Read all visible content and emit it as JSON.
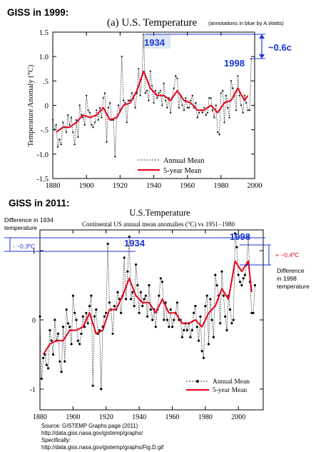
{
  "panel_labels": {
    "top": "GISS in 1999:",
    "bottom": "GISS in 2011:"
  },
  "colors": {
    "annual": "#333333",
    "mean5": "#e3001b",
    "annotation": "#1a35d8",
    "top_highlight_1934": "#dde6f5"
  },
  "chart_data": [
    {
      "type": "line",
      "title": "(a)  U.S. Temperature",
      "subtitle": "(annotations in blue by A.Watts)",
      "xlabel": "",
      "ylabel": "Temperature Anomaly (°C)",
      "xlim": [
        1880,
        2000
      ],
      "ylim": [
        -1.5,
        1.5
      ],
      "x_ticks": [
        1880,
        1900,
        1920,
        1940,
        1960,
        1980,
        2000
      ],
      "y_ticks": [
        -1.5,
        -1.0,
        -0.5,
        0.0,
        0.5,
        1.0,
        1.5
      ],
      "y_tick_labels": [
        "-1.5",
        "-1.0",
        "-.5",
        "0",
        ".5",
        "1.0",
        "1.5"
      ],
      "grid": false,
      "legend": "bottom-center",
      "series": [
        {
          "name": "Annual Mean",
          "x": [
            1880,
            1881,
            1882,
            1883,
            1884,
            1885,
            1886,
            1887,
            1888,
            1889,
            1890,
            1891,
            1892,
            1893,
            1894,
            1895,
            1896,
            1897,
            1898,
            1899,
            1900,
            1901,
            1902,
            1903,
            1904,
            1905,
            1906,
            1907,
            1908,
            1909,
            1910,
            1911,
            1912,
            1913,
            1914,
            1915,
            1916,
            1917,
            1918,
            1919,
            1920,
            1921,
            1922,
            1923,
            1924,
            1925,
            1926,
            1927,
            1928,
            1929,
            1930,
            1931,
            1932,
            1933,
            1934,
            1935,
            1936,
            1937,
            1938,
            1939,
            1940,
            1941,
            1942,
            1943,
            1944,
            1945,
            1946,
            1947,
            1948,
            1949,
            1950,
            1951,
            1952,
            1953,
            1954,
            1955,
            1956,
            1957,
            1958,
            1959,
            1960,
            1961,
            1962,
            1963,
            1964,
            1965,
            1966,
            1967,
            1968,
            1969,
            1970,
            1971,
            1972,
            1973,
            1974,
            1975,
            1976,
            1977,
            1978,
            1979,
            1980,
            1981,
            1982,
            1983,
            1984,
            1985,
            1986,
            1987,
            1988,
            1989,
            1990,
            1991,
            1992,
            1993,
            1994,
            1995,
            1996,
            1997,
            1998
          ],
          "values": [
            -0.3,
            -0.5,
            -0.4,
            -0.85,
            -0.7,
            -0.8,
            -0.35,
            -0.45,
            -0.55,
            -0.2,
            -0.4,
            -0.25,
            -0.55,
            -0.8,
            -0.3,
            -0.65,
            0.0,
            -0.2,
            -0.25,
            -0.4,
            0.2,
            -0.1,
            -0.15,
            -0.4,
            -0.45,
            -0.35,
            -0.1,
            -0.3,
            -0.05,
            -0.25,
            0.15,
            0.25,
            -0.75,
            -0.05,
            0.05,
            -0.3,
            -0.3,
            -1.05,
            -0.25,
            0.0,
            -0.1,
            1.0,
            0.1,
            0.05,
            -0.35,
            0.1,
            0.1,
            0.25,
            0.15,
            -0.05,
            0.25,
            0.75,
            0.2,
            0.6,
            1.45,
            0.25,
            0.3,
            0.1,
            0.7,
            0.4,
            0.05,
            0.3,
            0.15,
            0.25,
            0.3,
            0.0,
            0.45,
            0.1,
            -0.05,
            0.15,
            -0.15,
            0.15,
            0.35,
            0.6,
            0.55,
            -0.05,
            0.2,
            0.0,
            -0.1,
            0.15,
            -0.05,
            -0.05,
            0.1,
            0.2,
            -0.05,
            0.05,
            -0.25,
            -0.15,
            -0.1,
            -0.15,
            -0.05,
            -0.2,
            -0.15,
            0.15,
            0.15,
            -0.1,
            -0.25,
            0.0,
            -0.55,
            -0.6,
            0.25,
            0.3,
            -0.35,
            0.2,
            -0.05,
            -0.25,
            0.5,
            0.35,
            0.2,
            -0.1,
            0.6,
            0.2,
            0.0,
            -0.15,
            0.2,
            0.05,
            -0.1,
            -0.1,
            0.95
          ]
        },
        {
          "name": "5-year Mean",
          "x": [
            1882,
            1886,
            1890,
            1894,
            1898,
            1902,
            1906,
            1910,
            1914,
            1918,
            1922,
            1926,
            1930,
            1934,
            1938,
            1942,
            1946,
            1950,
            1954,
            1958,
            1962,
            1966,
            1970,
            1974,
            1978,
            1982,
            1986,
            1990,
            1994,
            1996
          ],
          "values": [
            -0.55,
            -0.45,
            -0.45,
            -0.35,
            -0.2,
            -0.25,
            -0.2,
            -0.05,
            -0.3,
            -0.25,
            0.0,
            0.05,
            0.3,
            0.7,
            0.35,
            0.2,
            0.2,
            0.1,
            0.3,
            0.1,
            0.05,
            -0.1,
            -0.1,
            0.0,
            -0.15,
            0.05,
            0.1,
            0.35,
            0.1,
            0.2
          ]
        }
      ],
      "annotations": {
        "peak_1934": "1934",
        "peak_1998": "1998",
        "difference": "~0.6c"
      }
    },
    {
      "type": "line",
      "title": "U.S.Temperature",
      "subtitle": "Continental US annual mean anomalies (°C) vs 1951−1980",
      "xlabel": "",
      "ylabel": "",
      "xlim": [
        1880,
        2015
      ],
      "ylim": [
        -1.3,
        1.3
      ],
      "x_ticks": [
        1880,
        1900,
        1920,
        1940,
        1960,
        1980,
        2000
      ],
      "y_ticks": [
        -1,
        0,
        1
      ],
      "y_tick_labels": [
        "-1",
        "0",
        "1"
      ],
      "grid": false,
      "legend": "bottom-right",
      "series": [
        {
          "name": "Annual Mean",
          "x": [
            1880,
            1881,
            1882,
            1883,
            1884,
            1885,
            1886,
            1887,
            1888,
            1889,
            1890,
            1891,
            1892,
            1893,
            1894,
            1895,
            1896,
            1897,
            1898,
            1899,
            1900,
            1901,
            1902,
            1903,
            1904,
            1905,
            1906,
            1907,
            1908,
            1909,
            1910,
            1911,
            1912,
            1913,
            1914,
            1915,
            1916,
            1917,
            1918,
            1919,
            1920,
            1921,
            1922,
            1923,
            1924,
            1925,
            1926,
            1927,
            1928,
            1929,
            1930,
            1931,
            1932,
            1933,
            1934,
            1935,
            1936,
            1937,
            1938,
            1939,
            1940,
            1941,
            1942,
            1943,
            1944,
            1945,
            1946,
            1947,
            1948,
            1949,
            1950,
            1951,
            1952,
            1953,
            1954,
            1955,
            1956,
            1957,
            1958,
            1959,
            1960,
            1961,
            1962,
            1963,
            1964,
            1965,
            1966,
            1967,
            1968,
            1969,
            1970,
            1971,
            1972,
            1973,
            1974,
            1975,
            1976,
            1977,
            1978,
            1979,
            1980,
            1981,
            1982,
            1983,
            1984,
            1985,
            1986,
            1987,
            1988,
            1989,
            1990,
            1991,
            1992,
            1993,
            1994,
            1995,
            1996,
            1997,
            1998,
            1999,
            2000,
            2001,
            2002,
            2003,
            2004,
            2005,
            2006,
            2007,
            2008,
            2009,
            2010
          ],
          "values": [
            0.05,
            -0.85,
            -0.55,
            -0.5,
            -0.65,
            -0.7,
            -0.15,
            -0.3,
            -0.5,
            0.0,
            -0.3,
            -0.2,
            -0.6,
            -0.75,
            -0.1,
            -0.6,
            0.15,
            -0.05,
            -0.1,
            -0.35,
            0.35,
            0.1,
            0.0,
            -0.3,
            -0.35,
            -0.2,
            0.05,
            -0.1,
            0.1,
            -0.05,
            0.2,
            0.35,
            -0.95,
            0.05,
            0.15,
            -0.2,
            -0.15,
            -1.0,
            -0.1,
            0.05,
            0.1,
            1.1,
            0.25,
            0.15,
            -0.2,
            0.2,
            0.15,
            0.4,
            0.3,
            0.1,
            0.35,
            0.9,
            0.3,
            0.7,
            1.2,
            0.3,
            0.4,
            0.2,
            0.8,
            0.5,
            0.1,
            0.4,
            0.2,
            0.3,
            0.35,
            0.05,
            0.5,
            0.15,
            0.0,
            0.15,
            -0.1,
            0.15,
            0.35,
            0.6,
            0.55,
            0.0,
            0.25,
            0.0,
            -0.1,
            0.15,
            -0.1,
            0.0,
            0.1,
            0.25,
            0.0,
            0.0,
            -0.25,
            -0.15,
            -0.05,
            -0.15,
            -0.05,
            -0.25,
            -0.15,
            0.1,
            0.2,
            -0.1,
            -0.3,
            0.05,
            -0.45,
            -0.55,
            0.2,
            0.35,
            -0.35,
            0.3,
            0.0,
            -0.25,
            0.65,
            0.5,
            0.35,
            -0.05,
            0.7,
            0.35,
            0.05,
            -0.15,
            0.35,
            0.15,
            -0.05,
            0.0,
            1.25,
            1.05,
            0.65,
            0.55,
            0.5,
            0.6,
            0.65,
            0.8,
            1.2,
            0.55,
            0.1,
            0.1,
            0.5
          ]
        },
        {
          "name": "5-year Mean",
          "x": [
            1882,
            1886,
            1890,
            1894,
            1898,
            1902,
            1906,
            1910,
            1914,
            1918,
            1922,
            1926,
            1930,
            1934,
            1938,
            1942,
            1946,
            1950,
            1954,
            1958,
            1962,
            1966,
            1970,
            1974,
            1978,
            1982,
            1986,
            1990,
            1994,
            1998,
            2002,
            2006,
            2008
          ],
          "values": [
            -0.5,
            -0.35,
            -0.3,
            -0.3,
            -0.15,
            -0.15,
            -0.1,
            0.1,
            -0.2,
            -0.15,
            0.15,
            0.15,
            0.35,
            0.6,
            0.35,
            0.25,
            0.25,
            0.1,
            0.3,
            0.1,
            0.1,
            -0.05,
            -0.05,
            0.0,
            -0.1,
            0.1,
            0.2,
            0.45,
            0.3,
            0.85,
            0.7,
            0.85,
            0.4
          ]
        }
      ],
      "annotations": {
        "peak_1934": "1934",
        "peak_1998": "1998",
        "left_note": "Difference in 1934 temperature",
        "left_value": "- ~0.3ºC",
        "right_note": "Difference in 1998 temperature",
        "right_value": "+ ~0.4ºC"
      },
      "source": [
        "Source:  GISTEMP Graphs page (2011)",
        "http://data.giss.nasa.gov/gistemp/graphs/",
        "Specifically:",
        "http://data.giss.nasa.gov/gistemp/graphs/Fig.D.gif"
      ]
    }
  ]
}
